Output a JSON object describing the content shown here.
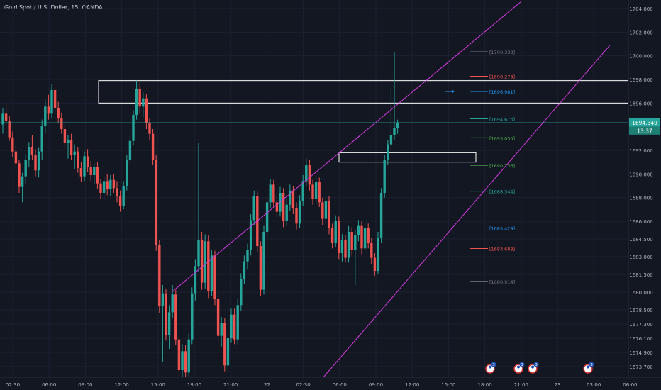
{
  "header": {
    "title": "Gold Spot / U.S. Dollar, 15, OANDA"
  },
  "colors": {
    "background": "#131722",
    "up": "#26a69a",
    "down": "#ef5350",
    "channel": "#d63be3",
    "zone": "#ffffff",
    "price_line": "#26a69a",
    "axis_text": "#b2b5be"
  },
  "chart_data": {
    "type": "candlestick",
    "title": "Gold Spot / U.S. Dollar, 15, OANDA",
    "ylim": [
      1672.8,
      1704.6
    ],
    "y_ticks": [
      "1704.000",
      "1702.000",
      "1700.000",
      "1698.000",
      "1696.000",
      "1692.000",
      "1690.000",
      "1688.000",
      "1686.000",
      "1684.500",
      "1683.000",
      "1681.500",
      "1680.000",
      "1678.500",
      "1677.300",
      "1676.100",
      "1674.900",
      "1673.700"
    ],
    "x_ticks": [
      "02:30",
      "06:00",
      "09:00",
      "12:00",
      "15:00",
      "18:00",
      "21:00",
      "22",
      "02:30",
      "06:00",
      "09:00",
      "12:00",
      "15:00",
      "18:00",
      "21:00",
      "23",
      "03:00",
      "06:00"
    ],
    "current_price": {
      "value": "1694.349",
      "countdown": "13:37"
    },
    "price_levels": [
      {
        "label": "[1700.338]",
        "value": 1700.338,
        "color": "#787b86"
      },
      {
        "label": "[1698.273]",
        "value": 1698.273,
        "color": "#ef5350"
      },
      {
        "label": "[1696.981]",
        "value": 1696.981,
        "color": "#2196f3"
      },
      {
        "label": "[1694.673]",
        "value": 1694.673,
        "color": "#26a69a"
      },
      {
        "label": "[1693.055]",
        "value": 1693.055,
        "color": "#4caf50"
      },
      {
        "label": "[1690.736]",
        "value": 1690.736,
        "color": "#4caf50"
      },
      {
        "label": "[1688.544]",
        "value": 1688.544,
        "color": "#26a69a"
      },
      {
        "label": "[1685.429]",
        "value": 1685.429,
        "color": "#2196f3"
      },
      {
        "label": "[1683.688]",
        "value": 1683.688,
        "color": "#ef5350"
      },
      {
        "label": "[1680.914]",
        "value": 1680.914,
        "color": "#787b86"
      }
    ],
    "zones": [
      {
        "name": "resistance-zone",
        "y_top": 1697.9,
        "y_bottom": 1696.0,
        "x_start": 139,
        "x_end": 886
      },
      {
        "name": "breakout-zone",
        "y_top": 1691.8,
        "y_bottom": 1691.0,
        "x_start": 478,
        "x_end": 671
      }
    ],
    "channel_lines": [
      {
        "name": "channel-upper-line",
        "from": [
          242,
          1680.0
        ],
        "to": [
          735,
          1704.6
        ]
      },
      {
        "name": "channel-lower-line",
        "from": [
          456,
          1672.8
        ],
        "to": [
          860,
          1700.9
        ]
      }
    ],
    "event_markers": [
      {
        "x": 691,
        "count": "3"
      },
      {
        "x": 731,
        "count": "3"
      },
      {
        "x": 751,
        "count": "3"
      },
      {
        "x": 829,
        "count": "3"
      }
    ],
    "candles": [
      {
        "o": 1694.2,
        "h": 1695.6,
        "l": 1693.4,
        "c": 1695.1
      },
      {
        "o": 1695.1,
        "h": 1696.0,
        "l": 1694.3,
        "c": 1694.5
      },
      {
        "o": 1694.5,
        "h": 1694.9,
        "l": 1692.8,
        "c": 1693.1
      },
      {
        "o": 1693.1,
        "h": 1693.6,
        "l": 1691.4,
        "c": 1691.9
      },
      {
        "o": 1691.9,
        "h": 1692.4,
        "l": 1690.6,
        "c": 1690.9
      },
      {
        "o": 1690.9,
        "h": 1691.2,
        "l": 1688.4,
        "c": 1688.9
      },
      {
        "o": 1688.9,
        "h": 1690.1,
        "l": 1687.6,
        "c": 1689.8
      },
      {
        "o": 1689.8,
        "h": 1691.6,
        "l": 1689.2,
        "c": 1691.2
      },
      {
        "o": 1691.2,
        "h": 1692.7,
        "l": 1690.6,
        "c": 1692.3
      },
      {
        "o": 1692.3,
        "h": 1693.3,
        "l": 1691.2,
        "c": 1691.6
      },
      {
        "o": 1691.6,
        "h": 1692.1,
        "l": 1689.8,
        "c": 1690.3
      },
      {
        "o": 1690.3,
        "h": 1692.2,
        "l": 1689.7,
        "c": 1691.9
      },
      {
        "o": 1691.9,
        "h": 1694.6,
        "l": 1691.2,
        "c": 1694.1
      },
      {
        "o": 1694.1,
        "h": 1696.3,
        "l": 1693.5,
        "c": 1695.7
      },
      {
        "o": 1695.7,
        "h": 1696.7,
        "l": 1694.6,
        "c": 1695.1
      },
      {
        "o": 1695.1,
        "h": 1697.6,
        "l": 1694.7,
        "c": 1697.1
      },
      {
        "o": 1697.1,
        "h": 1697.4,
        "l": 1695.2,
        "c": 1695.6
      },
      {
        "o": 1695.6,
        "h": 1696.1,
        "l": 1694.3,
        "c": 1694.7
      },
      {
        "o": 1694.7,
        "h": 1695.2,
        "l": 1693.4,
        "c": 1693.8
      },
      {
        "o": 1693.8,
        "h": 1694.2,
        "l": 1692.1,
        "c": 1692.6
      },
      {
        "o": 1692.6,
        "h": 1693.3,
        "l": 1691.3,
        "c": 1692.9
      },
      {
        "o": 1692.9,
        "h": 1693.4,
        "l": 1691.2,
        "c": 1691.6
      },
      {
        "o": 1691.6,
        "h": 1692.5,
        "l": 1690.4,
        "c": 1691.9
      },
      {
        "o": 1691.9,
        "h": 1692.3,
        "l": 1690.1,
        "c": 1690.5
      },
      {
        "o": 1690.5,
        "h": 1691.0,
        "l": 1689.3,
        "c": 1689.8
      },
      {
        "o": 1689.8,
        "h": 1691.9,
        "l": 1689.4,
        "c": 1691.5
      },
      {
        "o": 1691.5,
        "h": 1692.1,
        "l": 1690.2,
        "c": 1690.6
      },
      {
        "o": 1690.6,
        "h": 1691.1,
        "l": 1689.4,
        "c": 1689.9
      },
      {
        "o": 1689.9,
        "h": 1690.9,
        "l": 1689.1,
        "c": 1690.6
      },
      {
        "o": 1690.6,
        "h": 1691.0,
        "l": 1688.7,
        "c": 1689.2
      },
      {
        "o": 1689.2,
        "h": 1689.6,
        "l": 1687.9,
        "c": 1688.4
      },
      {
        "o": 1688.4,
        "h": 1689.8,
        "l": 1687.8,
        "c": 1689.4
      },
      {
        "o": 1689.4,
        "h": 1690.0,
        "l": 1688.2,
        "c": 1688.7
      },
      {
        "o": 1688.7,
        "h": 1689.9,
        "l": 1688.1,
        "c": 1689.5
      },
      {
        "o": 1689.5,
        "h": 1690.0,
        "l": 1688.4,
        "c": 1688.8
      },
      {
        "o": 1688.8,
        "h": 1689.4,
        "l": 1687.6,
        "c": 1688.1
      },
      {
        "o": 1688.1,
        "h": 1688.6,
        "l": 1686.8,
        "c": 1687.3
      },
      {
        "o": 1687.3,
        "h": 1689.4,
        "l": 1687.0,
        "c": 1689.0
      },
      {
        "o": 1689.0,
        "h": 1691.6,
        "l": 1688.6,
        "c": 1691.2
      },
      {
        "o": 1691.2,
        "h": 1693.2,
        "l": 1690.8,
        "c": 1692.8
      },
      {
        "o": 1692.8,
        "h": 1695.4,
        "l": 1692.4,
        "c": 1695.0
      },
      {
        "o": 1695.0,
        "h": 1697.9,
        "l": 1694.6,
        "c": 1697.2
      },
      {
        "o": 1697.2,
        "h": 1697.7,
        "l": 1695.1,
        "c": 1695.7
      },
      {
        "o": 1695.7,
        "h": 1696.9,
        "l": 1694.8,
        "c": 1696.4
      },
      {
        "o": 1696.4,
        "h": 1696.8,
        "l": 1693.8,
        "c": 1694.3
      },
      {
        "o": 1694.3,
        "h": 1694.7,
        "l": 1692.9,
        "c": 1693.4
      },
      {
        "o": 1693.4,
        "h": 1693.8,
        "l": 1690.8,
        "c": 1691.2
      },
      {
        "o": 1691.2,
        "h": 1691.6,
        "l": 1683.5,
        "c": 1684.0
      },
      {
        "o": 1684.0,
        "h": 1684.4,
        "l": 1678.2,
        "c": 1678.8
      },
      {
        "o": 1678.8,
        "h": 1680.6,
        "l": 1674.1,
        "c": 1679.9
      },
      {
        "o": 1679.9,
        "h": 1680.3,
        "l": 1675.9,
        "c": 1676.4
      },
      {
        "o": 1676.4,
        "h": 1678.9,
        "l": 1675.2,
        "c": 1678.3
      },
      {
        "o": 1678.3,
        "h": 1680.6,
        "l": 1677.8,
        "c": 1679.8
      },
      {
        "o": 1679.8,
        "h": 1680.2,
        "l": 1675.5,
        "c": 1676.0
      },
      {
        "o": 1676.0,
        "h": 1676.4,
        "l": 1672.9,
        "c": 1673.4
      },
      {
        "o": 1673.4,
        "h": 1675.6,
        "l": 1672.8,
        "c": 1675.0
      },
      {
        "o": 1675.0,
        "h": 1675.5,
        "l": 1672.8,
        "c": 1673.2
      },
      {
        "o": 1673.2,
        "h": 1676.5,
        "l": 1672.9,
        "c": 1676.0
      },
      {
        "o": 1676.0,
        "h": 1680.4,
        "l": 1675.6,
        "c": 1679.9
      },
      {
        "o": 1679.9,
        "h": 1682.8,
        "l": 1679.3,
        "c": 1682.2
      },
      {
        "o": 1682.2,
        "h": 1692.6,
        "l": 1681.7,
        "c": 1684.4
      },
      {
        "o": 1684.4,
        "h": 1685.1,
        "l": 1680.2,
        "c": 1680.8
      },
      {
        "o": 1680.8,
        "h": 1684.9,
        "l": 1680.3,
        "c": 1684.3
      },
      {
        "o": 1684.3,
        "h": 1684.8,
        "l": 1679.5,
        "c": 1680.1
      },
      {
        "o": 1680.1,
        "h": 1683.6,
        "l": 1679.7,
        "c": 1683.1
      },
      {
        "o": 1683.1,
        "h": 1683.5,
        "l": 1678.9,
        "c": 1679.4
      },
      {
        "o": 1679.4,
        "h": 1679.9,
        "l": 1675.8,
        "c": 1676.3
      },
      {
        "o": 1676.3,
        "h": 1677.9,
        "l": 1675.4,
        "c": 1677.4
      },
      {
        "o": 1677.4,
        "h": 1677.8,
        "l": 1673.3,
        "c": 1673.8
      },
      {
        "o": 1673.8,
        "h": 1676.6,
        "l": 1673.2,
        "c": 1676.1
      },
      {
        "o": 1676.1,
        "h": 1678.6,
        "l": 1675.7,
        "c": 1678.1
      },
      {
        "o": 1678.1,
        "h": 1678.6,
        "l": 1675.6,
        "c": 1676.0
      },
      {
        "o": 1676.0,
        "h": 1679.4,
        "l": 1675.6,
        "c": 1678.9
      },
      {
        "o": 1678.9,
        "h": 1681.6,
        "l": 1678.4,
        "c": 1681.1
      },
      {
        "o": 1681.1,
        "h": 1683.1,
        "l": 1680.7,
        "c": 1682.6
      },
      {
        "o": 1682.6,
        "h": 1684.1,
        "l": 1681.9,
        "c": 1683.6
      },
      {
        "o": 1683.6,
        "h": 1686.6,
        "l": 1683.1,
        "c": 1686.1
      },
      {
        "o": 1686.1,
        "h": 1688.6,
        "l": 1685.7,
        "c": 1688.1
      },
      {
        "o": 1688.1,
        "h": 1688.5,
        "l": 1683.4,
        "c": 1683.9
      },
      {
        "o": 1683.9,
        "h": 1684.3,
        "l": 1679.7,
        "c": 1680.2
      },
      {
        "o": 1680.2,
        "h": 1685.6,
        "l": 1679.8,
        "c": 1685.1
      },
      {
        "o": 1685.1,
        "h": 1688.1,
        "l": 1684.7,
        "c": 1687.6
      },
      {
        "o": 1687.6,
        "h": 1689.6,
        "l": 1687.1,
        "c": 1689.1
      },
      {
        "o": 1689.1,
        "h": 1689.5,
        "l": 1687.1,
        "c": 1687.6
      },
      {
        "o": 1687.6,
        "h": 1688.3,
        "l": 1686.3,
        "c": 1686.8
      },
      {
        "o": 1686.8,
        "h": 1688.9,
        "l": 1686.4,
        "c": 1688.4
      },
      {
        "o": 1688.4,
        "h": 1688.8,
        "l": 1685.5,
        "c": 1686.0
      },
      {
        "o": 1686.0,
        "h": 1687.9,
        "l": 1685.6,
        "c": 1687.4
      },
      {
        "o": 1687.4,
        "h": 1689.1,
        "l": 1686.9,
        "c": 1688.6
      },
      {
        "o": 1688.6,
        "h": 1689.0,
        "l": 1686.6,
        "c": 1687.1
      },
      {
        "o": 1687.1,
        "h": 1687.6,
        "l": 1685.3,
        "c": 1685.8
      },
      {
        "o": 1685.8,
        "h": 1688.2,
        "l": 1685.4,
        "c": 1687.7
      },
      {
        "o": 1687.7,
        "h": 1689.9,
        "l": 1687.3,
        "c": 1689.4
      },
      {
        "o": 1689.4,
        "h": 1691.3,
        "l": 1689.0,
        "c": 1690.8
      },
      {
        "o": 1690.8,
        "h": 1691.2,
        "l": 1688.6,
        "c": 1689.1
      },
      {
        "o": 1689.1,
        "h": 1689.5,
        "l": 1687.4,
        "c": 1687.9
      },
      {
        "o": 1687.9,
        "h": 1689.8,
        "l": 1687.5,
        "c": 1689.3
      },
      {
        "o": 1689.3,
        "h": 1689.7,
        "l": 1687.2,
        "c": 1687.6
      },
      {
        "o": 1687.6,
        "h": 1688.0,
        "l": 1685.7,
        "c": 1686.2
      },
      {
        "o": 1686.2,
        "h": 1688.2,
        "l": 1685.8,
        "c": 1687.7
      },
      {
        "o": 1687.7,
        "h": 1688.1,
        "l": 1684.9,
        "c": 1685.4
      },
      {
        "o": 1685.4,
        "h": 1685.8,
        "l": 1683.7,
        "c": 1684.2
      },
      {
        "o": 1684.2,
        "h": 1686.5,
        "l": 1683.8,
        "c": 1686.0
      },
      {
        "o": 1686.0,
        "h": 1686.4,
        "l": 1682.8,
        "c": 1683.3
      },
      {
        "o": 1683.3,
        "h": 1684.9,
        "l": 1682.6,
        "c": 1684.4
      },
      {
        "o": 1684.4,
        "h": 1684.8,
        "l": 1682.5,
        "c": 1682.9
      },
      {
        "o": 1682.9,
        "h": 1685.6,
        "l": 1682.5,
        "c": 1685.1
      },
      {
        "o": 1685.1,
        "h": 1685.5,
        "l": 1683.1,
        "c": 1683.6
      },
      {
        "o": 1683.6,
        "h": 1685.3,
        "l": 1680.6,
        "c": 1684.8
      },
      {
        "o": 1684.8,
        "h": 1686.1,
        "l": 1684.3,
        "c": 1685.6
      },
      {
        "o": 1685.6,
        "h": 1686.0,
        "l": 1683.2,
        "c": 1683.7
      },
      {
        "o": 1683.7,
        "h": 1685.9,
        "l": 1683.3,
        "c": 1685.4
      },
      {
        "o": 1685.4,
        "h": 1685.8,
        "l": 1683.7,
        "c": 1684.2
      },
      {
        "o": 1684.2,
        "h": 1684.6,
        "l": 1682.4,
        "c": 1682.9
      },
      {
        "o": 1682.9,
        "h": 1683.3,
        "l": 1681.4,
        "c": 1681.8
      },
      {
        "o": 1681.8,
        "h": 1685.1,
        "l": 1681.5,
        "c": 1684.6
      },
      {
        "o": 1684.6,
        "h": 1688.8,
        "l": 1684.2,
        "c": 1688.4
      },
      {
        "o": 1688.4,
        "h": 1691.6,
        "l": 1688.0,
        "c": 1691.2
      },
      {
        "o": 1691.2,
        "h": 1692.9,
        "l": 1690.8,
        "c": 1692.5
      },
      {
        "o": 1692.5,
        "h": 1697.4,
        "l": 1692.0,
        "c": 1693.3
      },
      {
        "o": 1693.3,
        "h": 1700.3,
        "l": 1692.9,
        "c": 1693.9
      },
      {
        "o": 1693.9,
        "h": 1694.6,
        "l": 1693.4,
        "c": 1694.3
      }
    ]
  }
}
